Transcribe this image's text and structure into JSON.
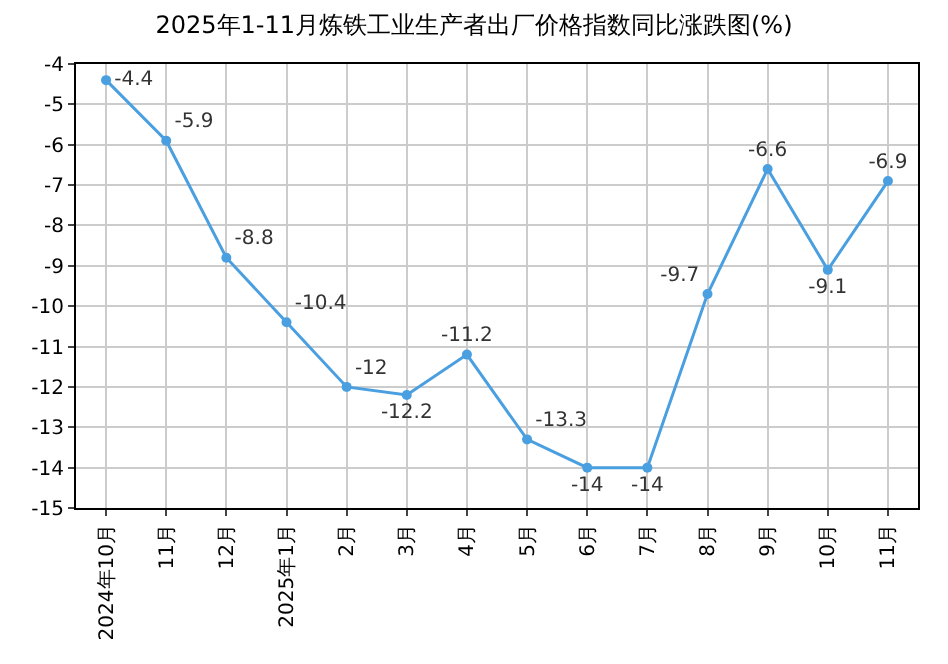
{
  "chart_data": {
    "type": "line",
    "title": "2025年1-11月炼铁工业生产者出厂价格指数同比涨跌图(%)",
    "categories": [
      "2024年10月",
      "11月",
      "12月",
      "2025年1月",
      "2月",
      "3月",
      "4月",
      "5月",
      "6月",
      "7月",
      "8月",
      "9月",
      "10月",
      "11月"
    ],
    "series": [
      {
        "color": "#4a9fe0",
        "values": [
          -4.4,
          -5.9,
          -8.8,
          -10.4,
          -12,
          -12.2,
          -11.2,
          -13.3,
          -14,
          -14,
          -9.7,
          -6.6,
          -9.1,
          -6.9
        ]
      }
    ],
    "ylim": [
      -15,
      -4
    ],
    "yticks": [
      -15,
      -14,
      -13,
      -12,
      -11,
      -10,
      -9,
      -8,
      -7,
      -6,
      -5,
      -4
    ],
    "grid": true,
    "legend": false,
    "marker": "circle",
    "line_style": "solid",
    "data_labels": true
  }
}
